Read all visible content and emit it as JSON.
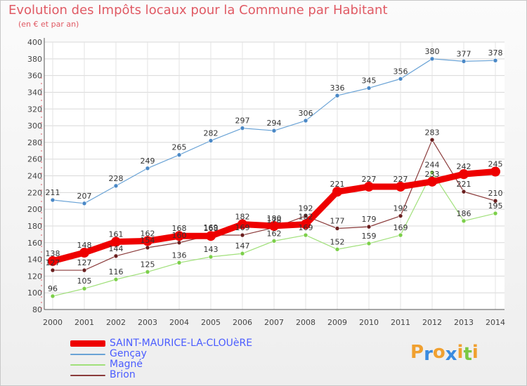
{
  "header": {
    "title": "Evolution des Impôts locaux pour la Commune par Habitant",
    "subtitle": "(en € et par an)"
  },
  "logo": {
    "letters": [
      {
        "ch": "P",
        "color": "#f0a030"
      },
      {
        "ch": "r",
        "color": "#3a8be0"
      },
      {
        "ch": "o",
        "color": "#f0a030"
      },
      {
        "ch": "x",
        "color": "#3a8be0"
      },
      {
        "ch": "i",
        "color": "#f0a030"
      },
      {
        "ch": "t",
        "color": "#7ac943"
      },
      {
        "ch": "i",
        "color": "#f0a030"
      }
    ]
  },
  "chart_data": {
    "type": "line",
    "title": "Evolution des Impôts locaux pour la Commune par Habitant",
    "subtitle": "(en € et par an)",
    "x": [
      2000,
      2001,
      2002,
      2003,
      2004,
      2005,
      2006,
      2007,
      2008,
      2009,
      2010,
      2011,
      2012,
      2013,
      2014
    ],
    "ylim": [
      80,
      400
    ],
    "yticks": [
      80,
      100,
      120,
      140,
      160,
      180,
      200,
      220,
      240,
      260,
      280,
      300,
      320,
      340,
      360,
      380,
      400
    ],
    "grid": true,
    "legend_position": "bottom-left",
    "series": [
      {
        "name": "Gençay",
        "color": "#6aa3d6",
        "dot": "#4a88c6",
        "width": 1.2,
        "values": [
          211,
          207,
          228,
          249,
          265,
          282,
          297,
          294,
          306,
          336,
          345,
          356,
          380,
          377,
          378
        ],
        "labels": [
          "211",
          "207",
          "228",
          "249",
          "265",
          "282",
          "297",
          "294",
          "306",
          "336",
          "345",
          "356",
          "380",
          "377",
          "378"
        ]
      },
      {
        "name": "Magné",
        "color": "#a0e07a",
        "dot": "#7ccf4a",
        "width": 1.2,
        "values": [
          96,
          105,
          116,
          125,
          136,
          143,
          147,
          162,
          169,
          152,
          159,
          169,
          244,
          186,
          195
        ],
        "labels": [
          "96",
          "105",
          "116",
          "125",
          "136",
          "143",
          "147",
          "162",
          "169",
          "152",
          "159",
          "169",
          "244",
          "186",
          "195"
        ]
      },
      {
        "name": "Brion",
        "color": "#8a3a3a",
        "dot": "#6a1f1f",
        "width": 1.2,
        "values": [
          127,
          127,
          144,
          154,
          160,
          169,
          169,
          178,
          192,
          177,
          179,
          192,
          283,
          221,
          210
        ],
        "labels": [
          "127",
          "127",
          "144",
          "154",
          "160",
          "169",
          "169",
          "178",
          "192",
          "177",
          "179",
          "192",
          "283",
          "221",
          "210"
        ]
      },
      {
        "name": "SAINT-MAURICE-LA-CLOUèRE",
        "color": "#ee0000",
        "dot": "#ee0000",
        "width": 9,
        "values": [
          138,
          148,
          161,
          162,
          168,
          168,
          182,
          180,
          182,
          221,
          227,
          227,
          233,
          242,
          245
        ],
        "labels": [
          "138",
          "148",
          "161",
          "162",
          "168",
          "168",
          "182",
          "180",
          "182",
          "221",
          "227",
          "227",
          "233",
          "242",
          "245"
        ]
      }
    ]
  }
}
